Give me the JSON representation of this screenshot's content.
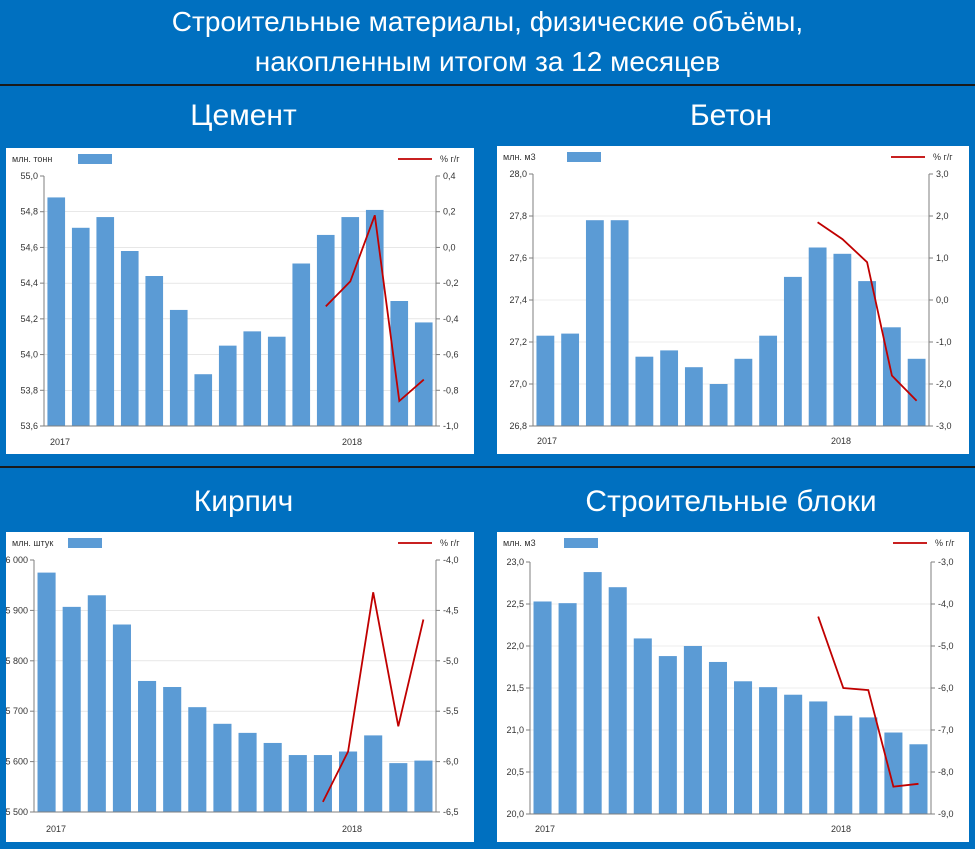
{
  "header": {
    "title_line1": "Строительные материалы, физические объёмы,",
    "title_line2": "накопленным итогом за 12 месяцев"
  },
  "chart_data": [
    {
      "type": "bar",
      "title": "Цемент",
      "ylabel_left": "млн. тонн",
      "ylabel_right": "% г/г",
      "x_labels": [
        "2017",
        "2018"
      ],
      "left_ylim": [
        53.6,
        55.0
      ],
      "left_ticks": [
        "55,0",
        "54,8",
        "54,6",
        "54,4",
        "54,2",
        "54,0",
        "53,8",
        "53,6"
      ],
      "right_ylim": [
        -1.0,
        0.4
      ],
      "right_ticks": [
        "0,4",
        "0,2",
        "0,0",
        "-0,2",
        "-0,4",
        "-0,6",
        "-0,8",
        "-1,0"
      ],
      "bars": [
        54.88,
        54.71,
        54.77,
        54.58,
        54.44,
        54.25,
        53.89,
        54.05,
        54.13,
        54.1,
        54.51,
        54.67,
        54.77,
        54.81,
        54.3,
        54.18
      ],
      "line": [
        null,
        null,
        null,
        null,
        null,
        null,
        null,
        null,
        null,
        null,
        null,
        -0.33,
        -0.19,
        0.18,
        -0.86,
        -0.74
      ]
    },
    {
      "type": "bar",
      "title": "Бетон",
      "ylabel_left": "млн. м3",
      "ylabel_right": "% г/г",
      "x_labels": [
        "2017",
        "2018"
      ],
      "left_ylim": [
        26.8,
        28.0
      ],
      "left_ticks": [
        "28,0",
        "27,8",
        "27,6",
        "27,4",
        "27,2",
        "27,0",
        "26,8"
      ],
      "right_ylim": [
        -3.0,
        3.0
      ],
      "right_ticks": [
        "3,0",
        "2,0",
        "1,0",
        "0,0",
        "-1,0",
        "-2,0",
        "-3,0"
      ],
      "bars": [
        27.23,
        27.24,
        27.78,
        27.78,
        27.13,
        27.16,
        27.08,
        27.0,
        27.12,
        27.23,
        27.51,
        27.65,
        27.62,
        27.49,
        27.27,
        27.12
      ],
      "line": [
        null,
        null,
        null,
        null,
        null,
        null,
        null,
        null,
        null,
        null,
        null,
        1.85,
        1.45,
        0.9,
        -1.8,
        -2.4
      ]
    },
    {
      "type": "bar",
      "title": "Кирпич",
      "ylabel_left": "млн. штук",
      "ylabel_right": "% г/г",
      "x_labels": [
        "2017",
        "2018"
      ],
      "left_ylim": [
        5500,
        6000
      ],
      "left_ticks": [
        "6 000",
        "5 900",
        "5 800",
        "5 700",
        "5 600",
        "5 500"
      ],
      "right_ylim": [
        -6.5,
        -4.0
      ],
      "right_ticks": [
        "-4,0",
        "-4,5",
        "-5,0",
        "-5,5",
        "-6,0",
        "-6,5"
      ],
      "bars": [
        5975,
        5907,
        5930,
        5872,
        5760,
        5748,
        5708,
        5675,
        5657,
        5637,
        5613,
        5613,
        5620,
        5652,
        5597,
        5602
      ],
      "line": [
        null,
        null,
        null,
        null,
        null,
        null,
        null,
        null,
        null,
        null,
        null,
        -6.4,
        -5.9,
        -4.32,
        -5.65,
        -4.59
      ]
    },
    {
      "type": "bar",
      "title": "Строительные блоки",
      "ylabel_left": "млн. м3",
      "ylabel_right": "% г/г",
      "x_labels": [
        "2017",
        "2018"
      ],
      "left_ylim": [
        20.0,
        23.0
      ],
      "left_ticks": [
        "23,0",
        "22,5",
        "22,0",
        "21,5",
        "21,0",
        "20,5",
        "20,0"
      ],
      "right_ylim": [
        -9.0,
        -3.0
      ],
      "right_ticks": [
        "-3,0",
        "-4,0",
        "-5,0",
        "-6,0",
        "-7,0",
        "-8,0",
        "-9,0"
      ],
      "bars": [
        22.53,
        22.51,
        22.88,
        22.7,
        22.09,
        21.88,
        22.0,
        21.81,
        21.58,
        21.51,
        21.42,
        21.34,
        21.17,
        21.15,
        20.97,
        20.83
      ],
      "line": [
        null,
        null,
        null,
        null,
        null,
        null,
        null,
        null,
        null,
        null,
        null,
        -4.3,
        -6.0,
        -6.05,
        -8.35,
        -8.28
      ]
    }
  ]
}
